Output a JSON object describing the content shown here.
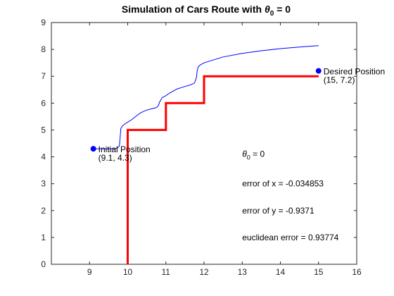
{
  "chart_data": {
    "type": "line",
    "title": {
      "prefix": "Simulation of Cars Route with ",
      "symbol": "θ",
      "subscript": "0",
      "suffix": " = 0"
    },
    "xlim": [
      8,
      16
    ],
    "ylim": [
      0,
      9
    ],
    "xticks": [
      9,
      10,
      11,
      12,
      13,
      14,
      15,
      16
    ],
    "yticks": [
      0,
      1,
      2,
      3,
      4,
      5,
      6,
      7,
      8,
      9
    ],
    "grid": false,
    "series": [
      {
        "role": "staircase-path",
        "color": "#ff0000",
        "x": [
          10,
          10,
          11,
          11,
          12,
          12,
          15
        ],
        "y": [
          0,
          5,
          5,
          6,
          6,
          7,
          7
        ]
      },
      {
        "role": "simulated-route",
        "color": "#0000ff",
        "x": [
          9.1,
          9.6,
          9.72,
          9.78,
          9.8,
          9.82,
          9.86,
          9.95,
          10.1,
          10.25,
          10.35,
          10.5,
          10.65,
          10.75,
          10.8,
          10.84,
          10.9,
          11.0,
          11.1,
          11.3,
          11.5,
          11.65,
          11.75,
          11.8,
          11.82,
          11.85,
          11.9,
          12.0,
          12.5,
          13.0,
          13.5,
          14.0,
          14.5,
          15.0
        ],
        "y": [
          4.3,
          4.3,
          4.32,
          4.4,
          4.7,
          5.05,
          5.15,
          5.25,
          5.38,
          5.55,
          5.65,
          5.74,
          5.8,
          5.83,
          5.9,
          6.05,
          6.2,
          6.28,
          6.38,
          6.53,
          6.62,
          6.68,
          6.75,
          6.95,
          7.2,
          7.36,
          7.42,
          7.5,
          7.72,
          7.85,
          7.95,
          8.03,
          8.09,
          8.14
        ]
      }
    ],
    "points": [
      {
        "label": "Initial Position",
        "coords": "(9.1, 4.3)",
        "x": 9.1,
        "y": 4.3,
        "color": "#0000ff"
      },
      {
        "label": "Desired Position",
        "coords": "(15, 7.2)",
        "x": 15,
        "y": 7.2,
        "color": "#0000ff"
      }
    ],
    "annotations": {
      "theta": {
        "symbol": "θ",
        "subscript": "0",
        "suffix": " = 0",
        "x": 13,
        "y": 4
      },
      "lines": [
        {
          "text": "error of x = -0.034853",
          "x": 13,
          "y": 3
        },
        {
          "text": "error of y = -0.9371",
          "x": 13,
          "y": 2
        },
        {
          "text": "euclidean error = 0.93774",
          "x": 13,
          "y": 1
        }
      ]
    }
  }
}
